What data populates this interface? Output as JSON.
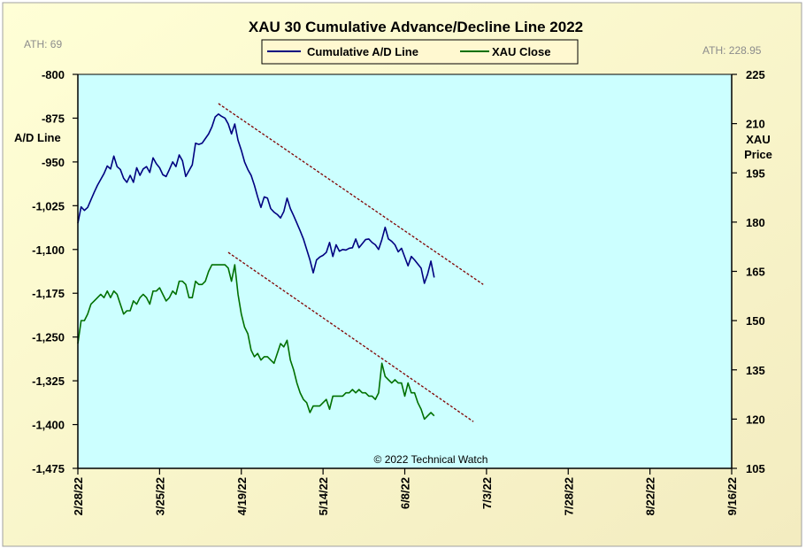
{
  "chart_data": {
    "type": "line",
    "title": "XAU 30 Cumulative  Advance/Decline  Line 2022",
    "left_axis_label": "A/D Line",
    "right_axis_label_line1": "XAU",
    "right_axis_label_line2": "Price",
    "ath_left": "ATH: 69",
    "ath_right": "ATH: 228.95",
    "copyright": "© 2022 Technical Watch",
    "plot_bg": "#ccffff",
    "frame_bg": "#ffffcc",
    "x_ticks": [
      "2/28/22",
      "3/25/22",
      "4/19/22",
      "5/14/22",
      "6/8/22",
      "7/3/22",
      "7/28/22",
      "8/22/22",
      "9/16/22"
    ],
    "x_domain_days": [
      0,
      200
    ],
    "y_left": {
      "min": -1475,
      "max": -800,
      "ticks": [
        "-800",
        "-875",
        "-950",
        "-1,025",
        "-1,100",
        "-1,175",
        "-1,250",
        "-1,325",
        "-1,400",
        "-1,475"
      ]
    },
    "y_right": {
      "min": 105,
      "max": 225,
      "ticks": [
        "225",
        "210",
        "195",
        "180",
        "165",
        "150",
        "135",
        "120",
        "105"
      ]
    },
    "series": [
      {
        "name": "Cumulative A/D Line",
        "axis": "left",
        "color": "#000080",
        "points": [
          [
            0,
            -1055
          ],
          [
            1,
            -1027
          ],
          [
            2,
            -1033
          ],
          [
            3,
            -1028
          ],
          [
            4,
            -1015
          ],
          [
            5,
            -1002
          ],
          [
            6,
            -990
          ],
          [
            7,
            -980
          ],
          [
            8,
            -970
          ],
          [
            9,
            -957
          ],
          [
            10,
            -962
          ],
          [
            11,
            -940
          ],
          [
            12,
            -958
          ],
          [
            13,
            -963
          ],
          [
            14,
            -978
          ],
          [
            15,
            -985
          ],
          [
            16,
            -973
          ],
          [
            17,
            -985
          ],
          [
            18,
            -960
          ],
          [
            19,
            -973
          ],
          [
            20,
            -962
          ],
          [
            21,
            -958
          ],
          [
            22,
            -968
          ],
          [
            23,
            -943
          ],
          [
            24,
            -953
          ],
          [
            25,
            -960
          ],
          [
            26,
            -972
          ],
          [
            27,
            -975
          ],
          [
            28,
            -963
          ],
          [
            29,
            -950
          ],
          [
            30,
            -958
          ],
          [
            31,
            -938
          ],
          [
            32,
            -948
          ],
          [
            33,
            -975
          ],
          [
            34,
            -965
          ],
          [
            35,
            -955
          ],
          [
            36,
            -918
          ],
          [
            37,
            -920
          ],
          [
            38,
            -918
          ],
          [
            39,
            -910
          ],
          [
            40,
            -902
          ],
          [
            41,
            -890
          ],
          [
            42,
            -873
          ],
          [
            43,
            -868
          ],
          [
            44,
            -872
          ],
          [
            45,
            -875
          ],
          [
            46,
            -885
          ],
          [
            47,
            -902
          ],
          [
            48,
            -885
          ],
          [
            49,
            -913
          ],
          [
            50,
            -930
          ],
          [
            51,
            -950
          ],
          [
            52,
            -963
          ],
          [
            53,
            -973
          ],
          [
            54,
            -990
          ],
          [
            55,
            -1010
          ],
          [
            56,
            -1028
          ],
          [
            57,
            -1010
          ],
          [
            58,
            -1012
          ],
          [
            59,
            -1030
          ],
          [
            60,
            -1036
          ],
          [
            61,
            -1040
          ],
          [
            62,
            -1046
          ],
          [
            63,
            -1035
          ],
          [
            64,
            -1012
          ],
          [
            65,
            -1030
          ],
          [
            66,
            -1042
          ],
          [
            67,
            -1055
          ],
          [
            68,
            -1068
          ],
          [
            69,
            -1082
          ],
          [
            70,
            -1100
          ],
          [
            71,
            -1118
          ],
          [
            72,
            -1140
          ],
          [
            73,
            -1118
          ],
          [
            74,
            -1113
          ],
          [
            75,
            -1110
          ],
          [
            76,
            -1105
          ],
          [
            77,
            -1088
          ],
          [
            78,
            -1112
          ],
          [
            79,
            -1092
          ],
          [
            80,
            -1103
          ],
          [
            81,
            -1100
          ],
          [
            82,
            -1101
          ],
          [
            83,
            -1098
          ],
          [
            84,
            -1097
          ],
          [
            85,
            -1082
          ],
          [
            86,
            -1097
          ],
          [
            87,
            -1090
          ],
          [
            88,
            -1083
          ],
          [
            89,
            -1082
          ],
          [
            90,
            -1088
          ],
          [
            91,
            -1092
          ],
          [
            92,
            -1100
          ],
          [
            93,
            -1083
          ],
          [
            94,
            -1062
          ],
          [
            95,
            -1082
          ],
          [
            96,
            -1086
          ],
          [
            97,
            -1092
          ],
          [
            98,
            -1104
          ],
          [
            99,
            -1098
          ],
          [
            100,
            -1113
          ],
          [
            101,
            -1128
          ],
          [
            102,
            -1112
          ],
          [
            103,
            -1118
          ],
          [
            104,
            -1125
          ],
          [
            105,
            -1132
          ],
          [
            106,
            -1158
          ],
          [
            107,
            -1142
          ],
          [
            108,
            -1120
          ],
          [
            109,
            -1148
          ]
        ]
      },
      {
        "name": "XAU Close",
        "axis": "right",
        "color": "#007000",
        "points": [
          [
            0,
            143
          ],
          [
            1,
            150
          ],
          [
            2,
            150
          ],
          [
            3,
            152
          ],
          [
            4,
            155
          ],
          [
            5,
            156
          ],
          [
            6,
            157
          ],
          [
            7,
            158
          ],
          [
            8,
            157
          ],
          [
            9,
            159
          ],
          [
            10,
            157
          ],
          [
            11,
            159
          ],
          [
            12,
            158
          ],
          [
            13,
            155
          ],
          [
            14,
            152
          ],
          [
            15,
            153
          ],
          [
            16,
            153
          ],
          [
            17,
            156
          ],
          [
            18,
            155
          ],
          [
            19,
            157
          ],
          [
            20,
            158
          ],
          [
            21,
            157
          ],
          [
            22,
            155
          ],
          [
            23,
            159
          ],
          [
            24,
            159
          ],
          [
            25,
            160
          ],
          [
            26,
            158
          ],
          [
            27,
            156
          ],
          [
            28,
            157
          ],
          [
            29,
            159
          ],
          [
            30,
            158
          ],
          [
            31,
            162
          ],
          [
            32,
            162
          ],
          [
            33,
            161
          ],
          [
            34,
            157
          ],
          [
            35,
            157
          ],
          [
            36,
            162
          ],
          [
            37,
            161
          ],
          [
            38,
            161
          ],
          [
            39,
            162
          ],
          [
            40,
            165
          ],
          [
            41,
            167
          ],
          [
            42,
            167
          ],
          [
            43,
            167
          ],
          [
            44,
            167
          ],
          [
            45,
            167
          ],
          [
            46,
            166
          ],
          [
            47,
            162
          ],
          [
            48,
            167
          ],
          [
            49,
            158
          ],
          [
            50,
            152
          ],
          [
            51,
            148
          ],
          [
            52,
            146
          ],
          [
            53,
            141
          ],
          [
            54,
            139
          ],
          [
            55,
            140
          ],
          [
            56,
            138
          ],
          [
            57,
            139
          ],
          [
            58,
            139
          ],
          [
            59,
            138
          ],
          [
            60,
            137
          ],
          [
            61,
            140
          ],
          [
            62,
            143
          ],
          [
            63,
            142
          ],
          [
            64,
            144
          ],
          [
            65,
            138
          ],
          [
            66,
            135
          ],
          [
            67,
            131
          ],
          [
            68,
            128
          ],
          [
            69,
            126
          ],
          [
            70,
            125
          ],
          [
            71,
            122
          ],
          [
            72,
            124
          ],
          [
            73,
            124
          ],
          [
            74,
            124
          ],
          [
            75,
            125
          ],
          [
            76,
            126
          ],
          [
            77,
            123
          ],
          [
            78,
            127
          ],
          [
            79,
            127
          ],
          [
            80,
            127
          ],
          [
            81,
            127
          ],
          [
            82,
            128
          ],
          [
            83,
            128
          ],
          [
            84,
            129
          ],
          [
            85,
            128
          ],
          [
            86,
            129
          ],
          [
            87,
            128
          ],
          [
            88,
            128
          ],
          [
            89,
            127
          ],
          [
            90,
            127
          ],
          [
            91,
            126
          ],
          [
            92,
            128
          ],
          [
            93,
            137
          ],
          [
            94,
            133
          ],
          [
            95,
            132
          ],
          [
            96,
            131
          ],
          [
            97,
            132
          ],
          [
            98,
            131
          ],
          [
            99,
            131
          ],
          [
            100,
            127
          ],
          [
            101,
            131
          ],
          [
            102,
            128
          ],
          [
            103,
            128
          ],
          [
            104,
            125
          ],
          [
            105,
            123
          ],
          [
            106,
            120
          ],
          [
            107,
            121
          ],
          [
            108,
            122
          ],
          [
            109,
            121
          ]
        ]
      }
    ],
    "trendlines": [
      {
        "axis": "left",
        "color": "#800000",
        "from": [
          43,
          -850
        ],
        "to": [
          124,
          -1160
        ]
      },
      {
        "axis": "left",
        "color": "#800000",
        "from": [
          46,
          -1105
        ],
        "to": [
          121,
          -1395
        ]
      }
    ]
  }
}
